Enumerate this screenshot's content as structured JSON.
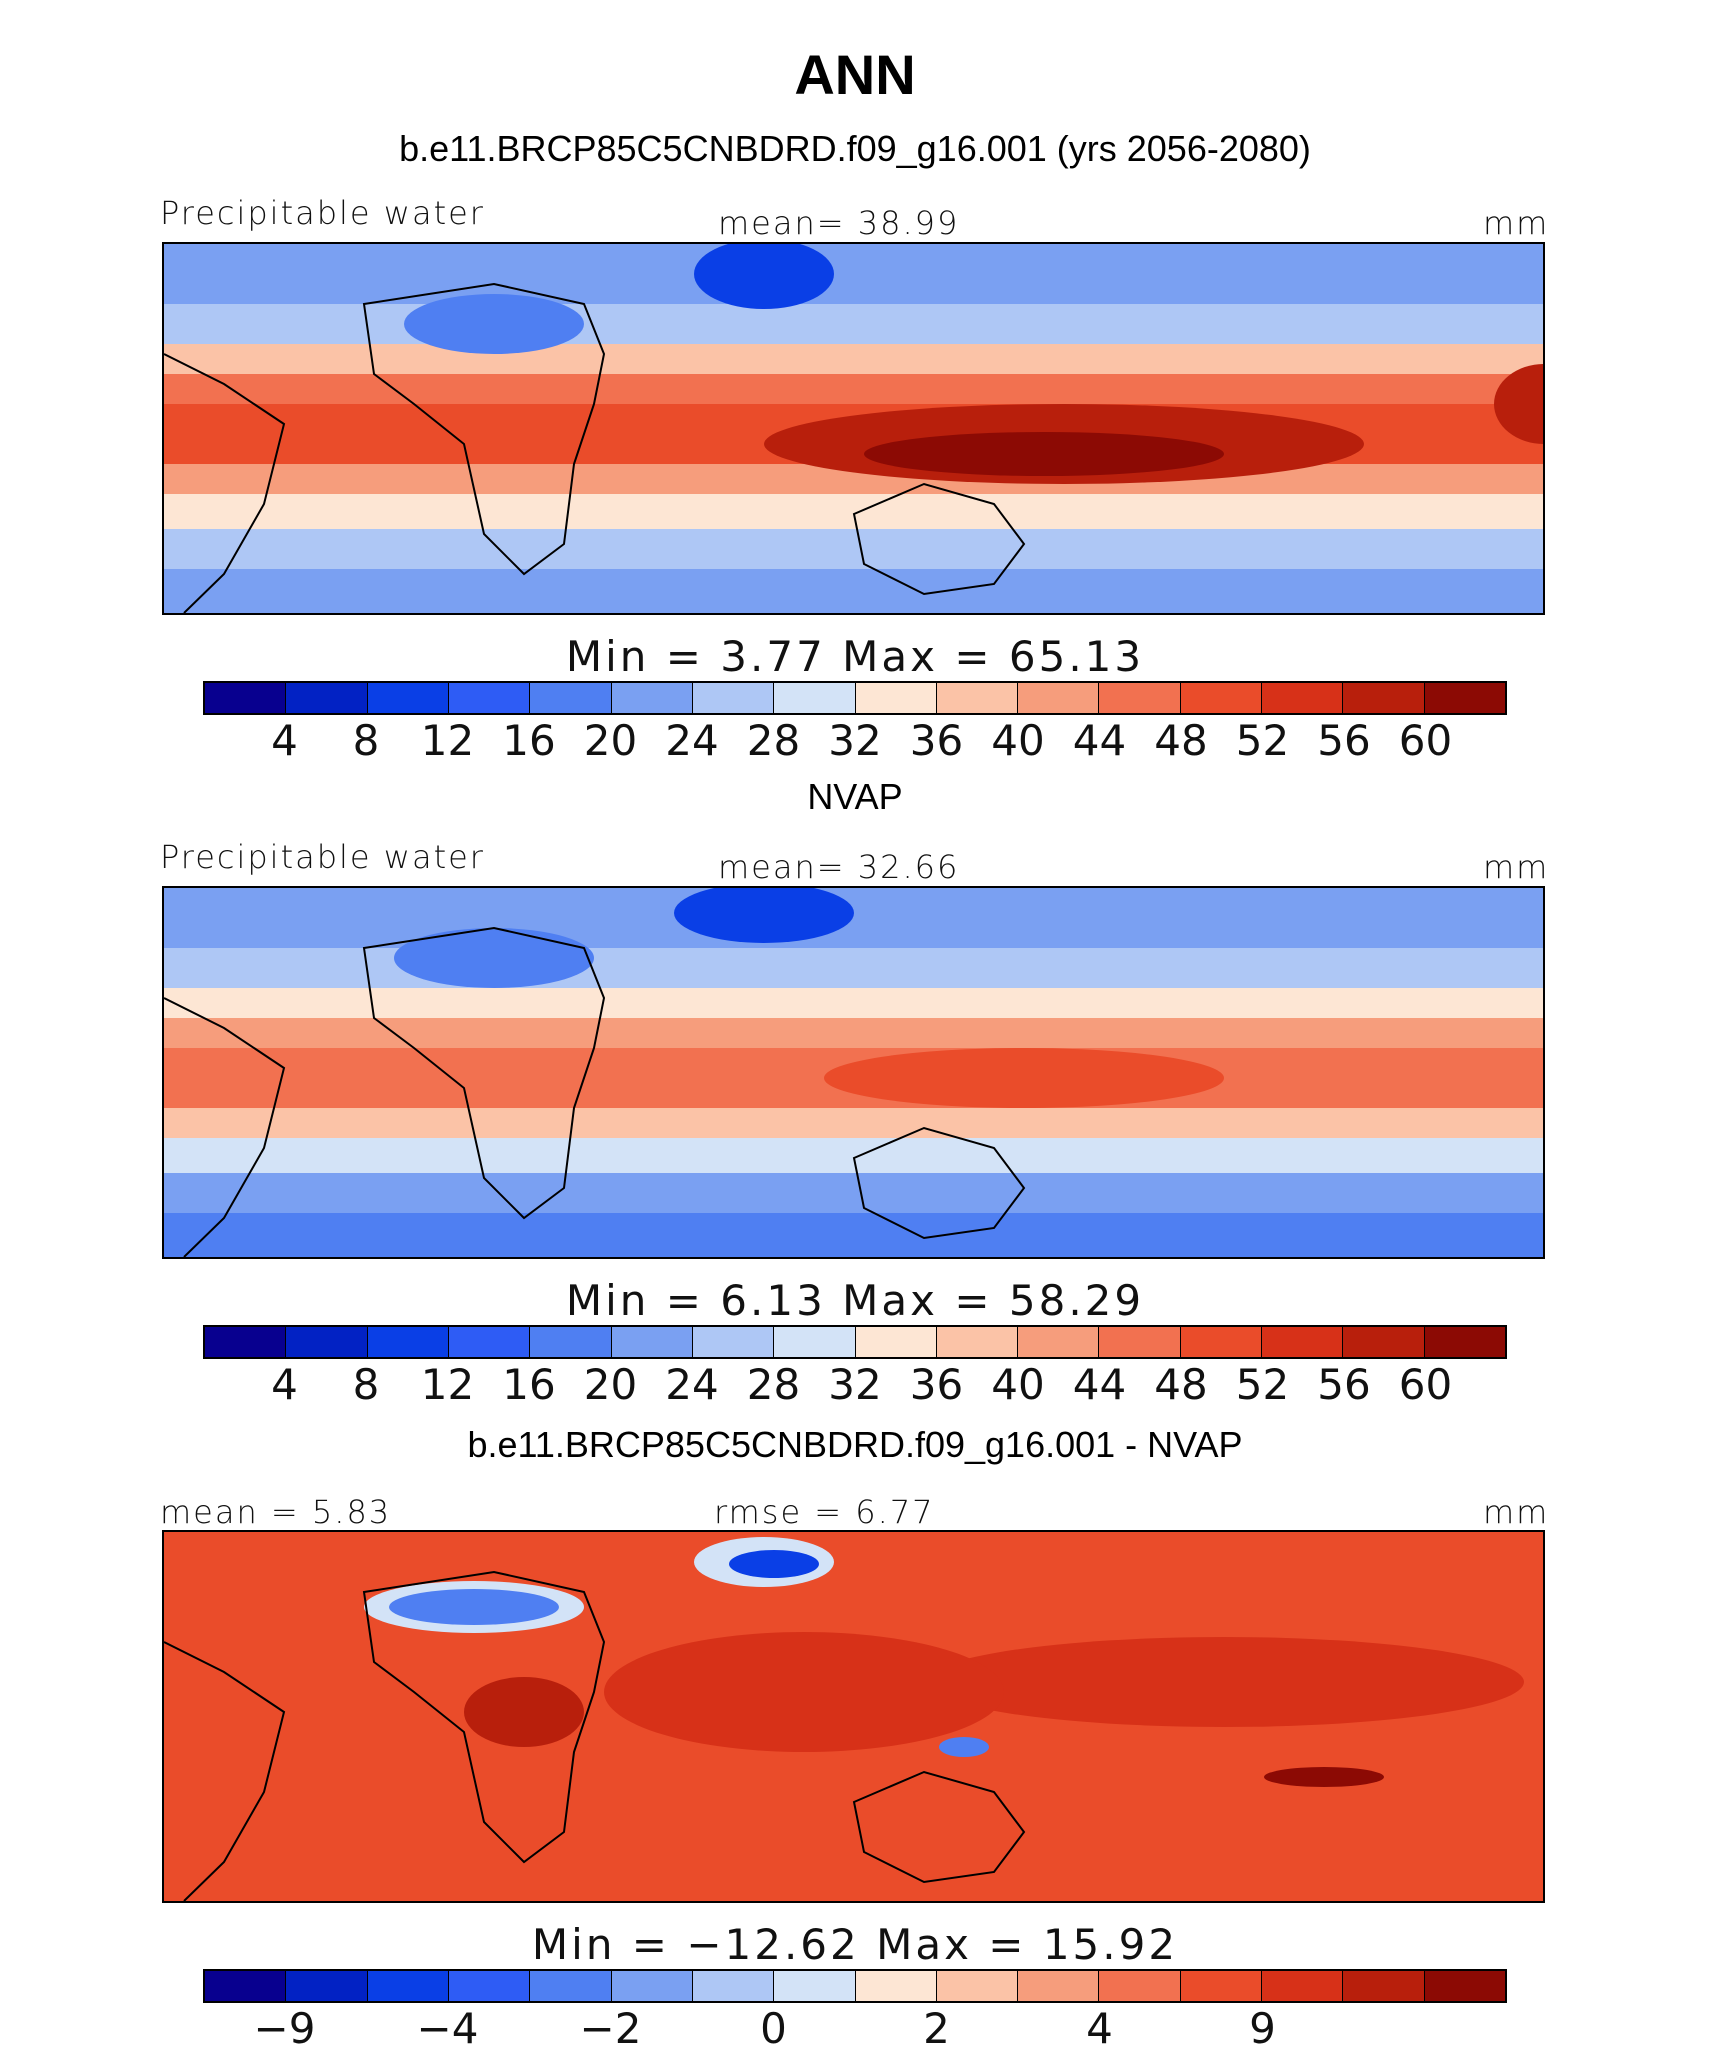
{
  "title": "ANN",
  "palette": [
    "#08008f",
    "#0222c4",
    "#0a3fe6",
    "#2e5cf5",
    "#4f7ff2",
    "#7aa0f2",
    "#aec7f5",
    "#d3e3f7",
    "#fde6d4",
    "#fbc3a7",
    "#f69d7c",
    "#f27150",
    "#ea4c2a",
    "#d73118",
    "#b81f0c",
    "#8c0a04"
  ],
  "chart_data": [
    {
      "type": "heatmap",
      "panel_title": "b.e11.BRCP85C5CNBDRD.f09_g16.001 (yrs 2056-2080)",
      "left_label": "Precipitable water",
      "center_label": "mean=   38.99",
      "units": "mm",
      "min_max": "Min =     3.77  Max =    65.13",
      "mean": 38.99,
      "min": 3.77,
      "max": 65.13,
      "colorbar_ticks": [
        "4",
        "8",
        "12",
        "16",
        "20",
        "24",
        "28",
        "32",
        "36",
        "40",
        "44",
        "48",
        "52",
        "56",
        "60"
      ]
    },
    {
      "type": "heatmap",
      "panel_title": "NVAP",
      "left_label": "Precipitable water",
      "center_label": "mean=   32.66",
      "units": "mm",
      "min_max": "Min =     6.13  Max =    58.29",
      "mean": 32.66,
      "min": 6.13,
      "max": 58.29,
      "colorbar_ticks": [
        "4",
        "8",
        "12",
        "16",
        "20",
        "24",
        "28",
        "32",
        "36",
        "40",
        "44",
        "48",
        "52",
        "56",
        "60"
      ]
    },
    {
      "type": "heatmap",
      "panel_title": "b.e11.BRCP85C5CNBDRD.f09_g16.001 - NVAP",
      "left_label": "mean =    5.83",
      "center_label": "rmse =    6.77",
      "units": "mm",
      "min_max": "Min = −12.62  Max =    15.92",
      "mean": 5.83,
      "rmse": 6.77,
      "min": -12.62,
      "max": 15.92,
      "colorbar_ticks": [
        "−9",
        "",
        "−4",
        "",
        "−2",
        "",
        "0",
        "",
        "2",
        "",
        "4",
        "",
        "9",
        "",
        ""
      ]
    }
  ]
}
